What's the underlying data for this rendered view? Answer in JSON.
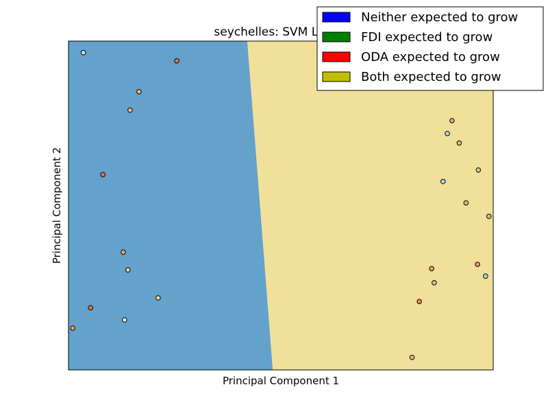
{
  "chart_data": {
    "type": "scatter",
    "title": "seychelles: SVM Linear",
    "xlabel": "Principal Component 1",
    "ylabel": "Principal Component 2",
    "xlim": [
      0,
      100
    ],
    "ylim": [
      0,
      100
    ],
    "grid": false,
    "legend_placement": "top-right",
    "legend": [
      {
        "label": "Neither expected to grow",
        "color": "#0000ff"
      },
      {
        "label": "FDI expected to grow",
        "color": "#008000"
      },
      {
        "label": "ODA expected to grow",
        "color": "#ff0000"
      },
      {
        "label": "Both expected to grow",
        "color": "#bfbf00"
      }
    ],
    "decision_regions": [
      {
        "class": "Neither expected to grow",
        "color": "#64a1cb",
        "boundary_top_x": 42.1,
        "boundary_bottom_x": 48.1,
        "side": "left"
      },
      {
        "class": "Both expected to grow",
        "color": "#f1e09a",
        "side": "right"
      }
    ],
    "points": [
      {
        "x": 3.5,
        "y": 96.5,
        "color": "#c6e5f0"
      },
      {
        "x": 25.5,
        "y": 94.0,
        "color": "#e0784a"
      },
      {
        "x": 16.6,
        "y": 84.6,
        "color": "#f1b87a"
      },
      {
        "x": 14.5,
        "y": 79.0,
        "color": "#f1b87a"
      },
      {
        "x": 8.1,
        "y": 59.4,
        "color": "#e0784a"
      },
      {
        "x": 12.9,
        "y": 35.8,
        "color": "#f1a872"
      },
      {
        "x": 14.0,
        "y": 30.4,
        "color": "#e6d29a"
      },
      {
        "x": 21.1,
        "y": 21.9,
        "color": "#e6d29a"
      },
      {
        "x": 5.2,
        "y": 18.9,
        "color": "#e0784a"
      },
      {
        "x": 13.2,
        "y": 15.2,
        "color": "#d9eef2"
      },
      {
        "x": 1.0,
        "y": 12.7,
        "color": "#f1a060"
      },
      {
        "x": 90.3,
        "y": 75.8,
        "color": "#f1a47a"
      },
      {
        "x": 89.2,
        "y": 71.9,
        "color": "#a9dcea"
      },
      {
        "x": 92.0,
        "y": 69.0,
        "color": "#d8bd88"
      },
      {
        "x": 96.5,
        "y": 60.8,
        "color": "#d8c893"
      },
      {
        "x": 88.2,
        "y": 57.3,
        "color": "#a9dcea"
      },
      {
        "x": 93.6,
        "y": 50.8,
        "color": "#d8bd88"
      },
      {
        "x": 99.0,
        "y": 46.7,
        "color": "#d8bd88"
      },
      {
        "x": 85.5,
        "y": 30.8,
        "color": "#f1a060"
      },
      {
        "x": 96.3,
        "y": 32.1,
        "color": "#f19a70"
      },
      {
        "x": 98.2,
        "y": 28.5,
        "color": "#a9dcea"
      },
      {
        "x": 86.1,
        "y": 26.5,
        "color": "#e8bd95"
      },
      {
        "x": 82.6,
        "y": 20.8,
        "color": "#f18a55"
      },
      {
        "x": 80.9,
        "y": 3.8,
        "color": "#d8c893"
      }
    ]
  }
}
